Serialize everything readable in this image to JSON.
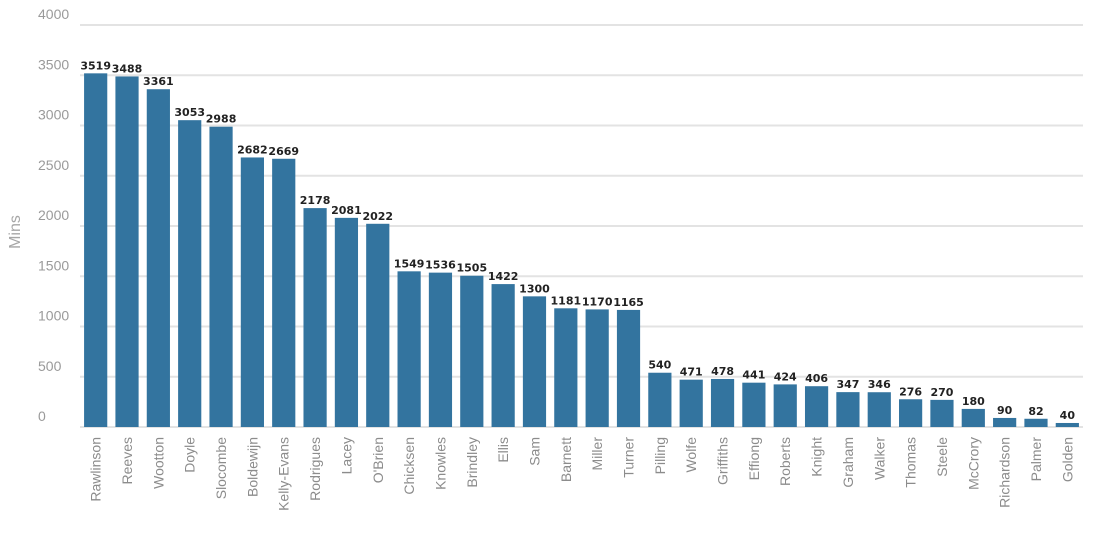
{
  "colors": {
    "bar": "#33749f",
    "grid": "#e3e3e3",
    "axis_text": "#9a9a9a"
  },
  "chart_data": {
    "type": "bar",
    "title": "",
    "xlabel": "",
    "ylabel": "Mins",
    "ylim": [
      0,
      4000
    ],
    "yticks": [
      0,
      500,
      1000,
      1500,
      2000,
      2500,
      3000,
      3500,
      4000
    ],
    "grid": true,
    "legend": "none",
    "categories": [
      "Rawlinson",
      "Reeves",
      "Wootton",
      "Doyle",
      "Slocombe",
      "Boldewijn",
      "Kelly-Evans",
      "Rodrigues",
      "Lacey",
      "O'Brien",
      "Chicksen",
      "Knowles",
      "Brindley",
      "Ellis",
      "Sam",
      "Barnett",
      "Miller",
      "Turner",
      "Pilling",
      "Wolfe",
      "Griffiths",
      "Effiong",
      "Roberts",
      "Knight",
      "Graham",
      "Walker",
      "Thomas",
      "Steele",
      "McCrory",
      "Richardson",
      "Palmer",
      "Golden"
    ],
    "values": [
      3519,
      3488,
      3361,
      3053,
      2988,
      2682,
      2669,
      2178,
      2081,
      2022,
      1549,
      1536,
      1505,
      1422,
      1300,
      1181,
      1170,
      1165,
      540,
      471,
      478,
      441,
      424,
      406,
      347,
      346,
      276,
      270,
      180,
      90,
      82,
      40
    ]
  }
}
